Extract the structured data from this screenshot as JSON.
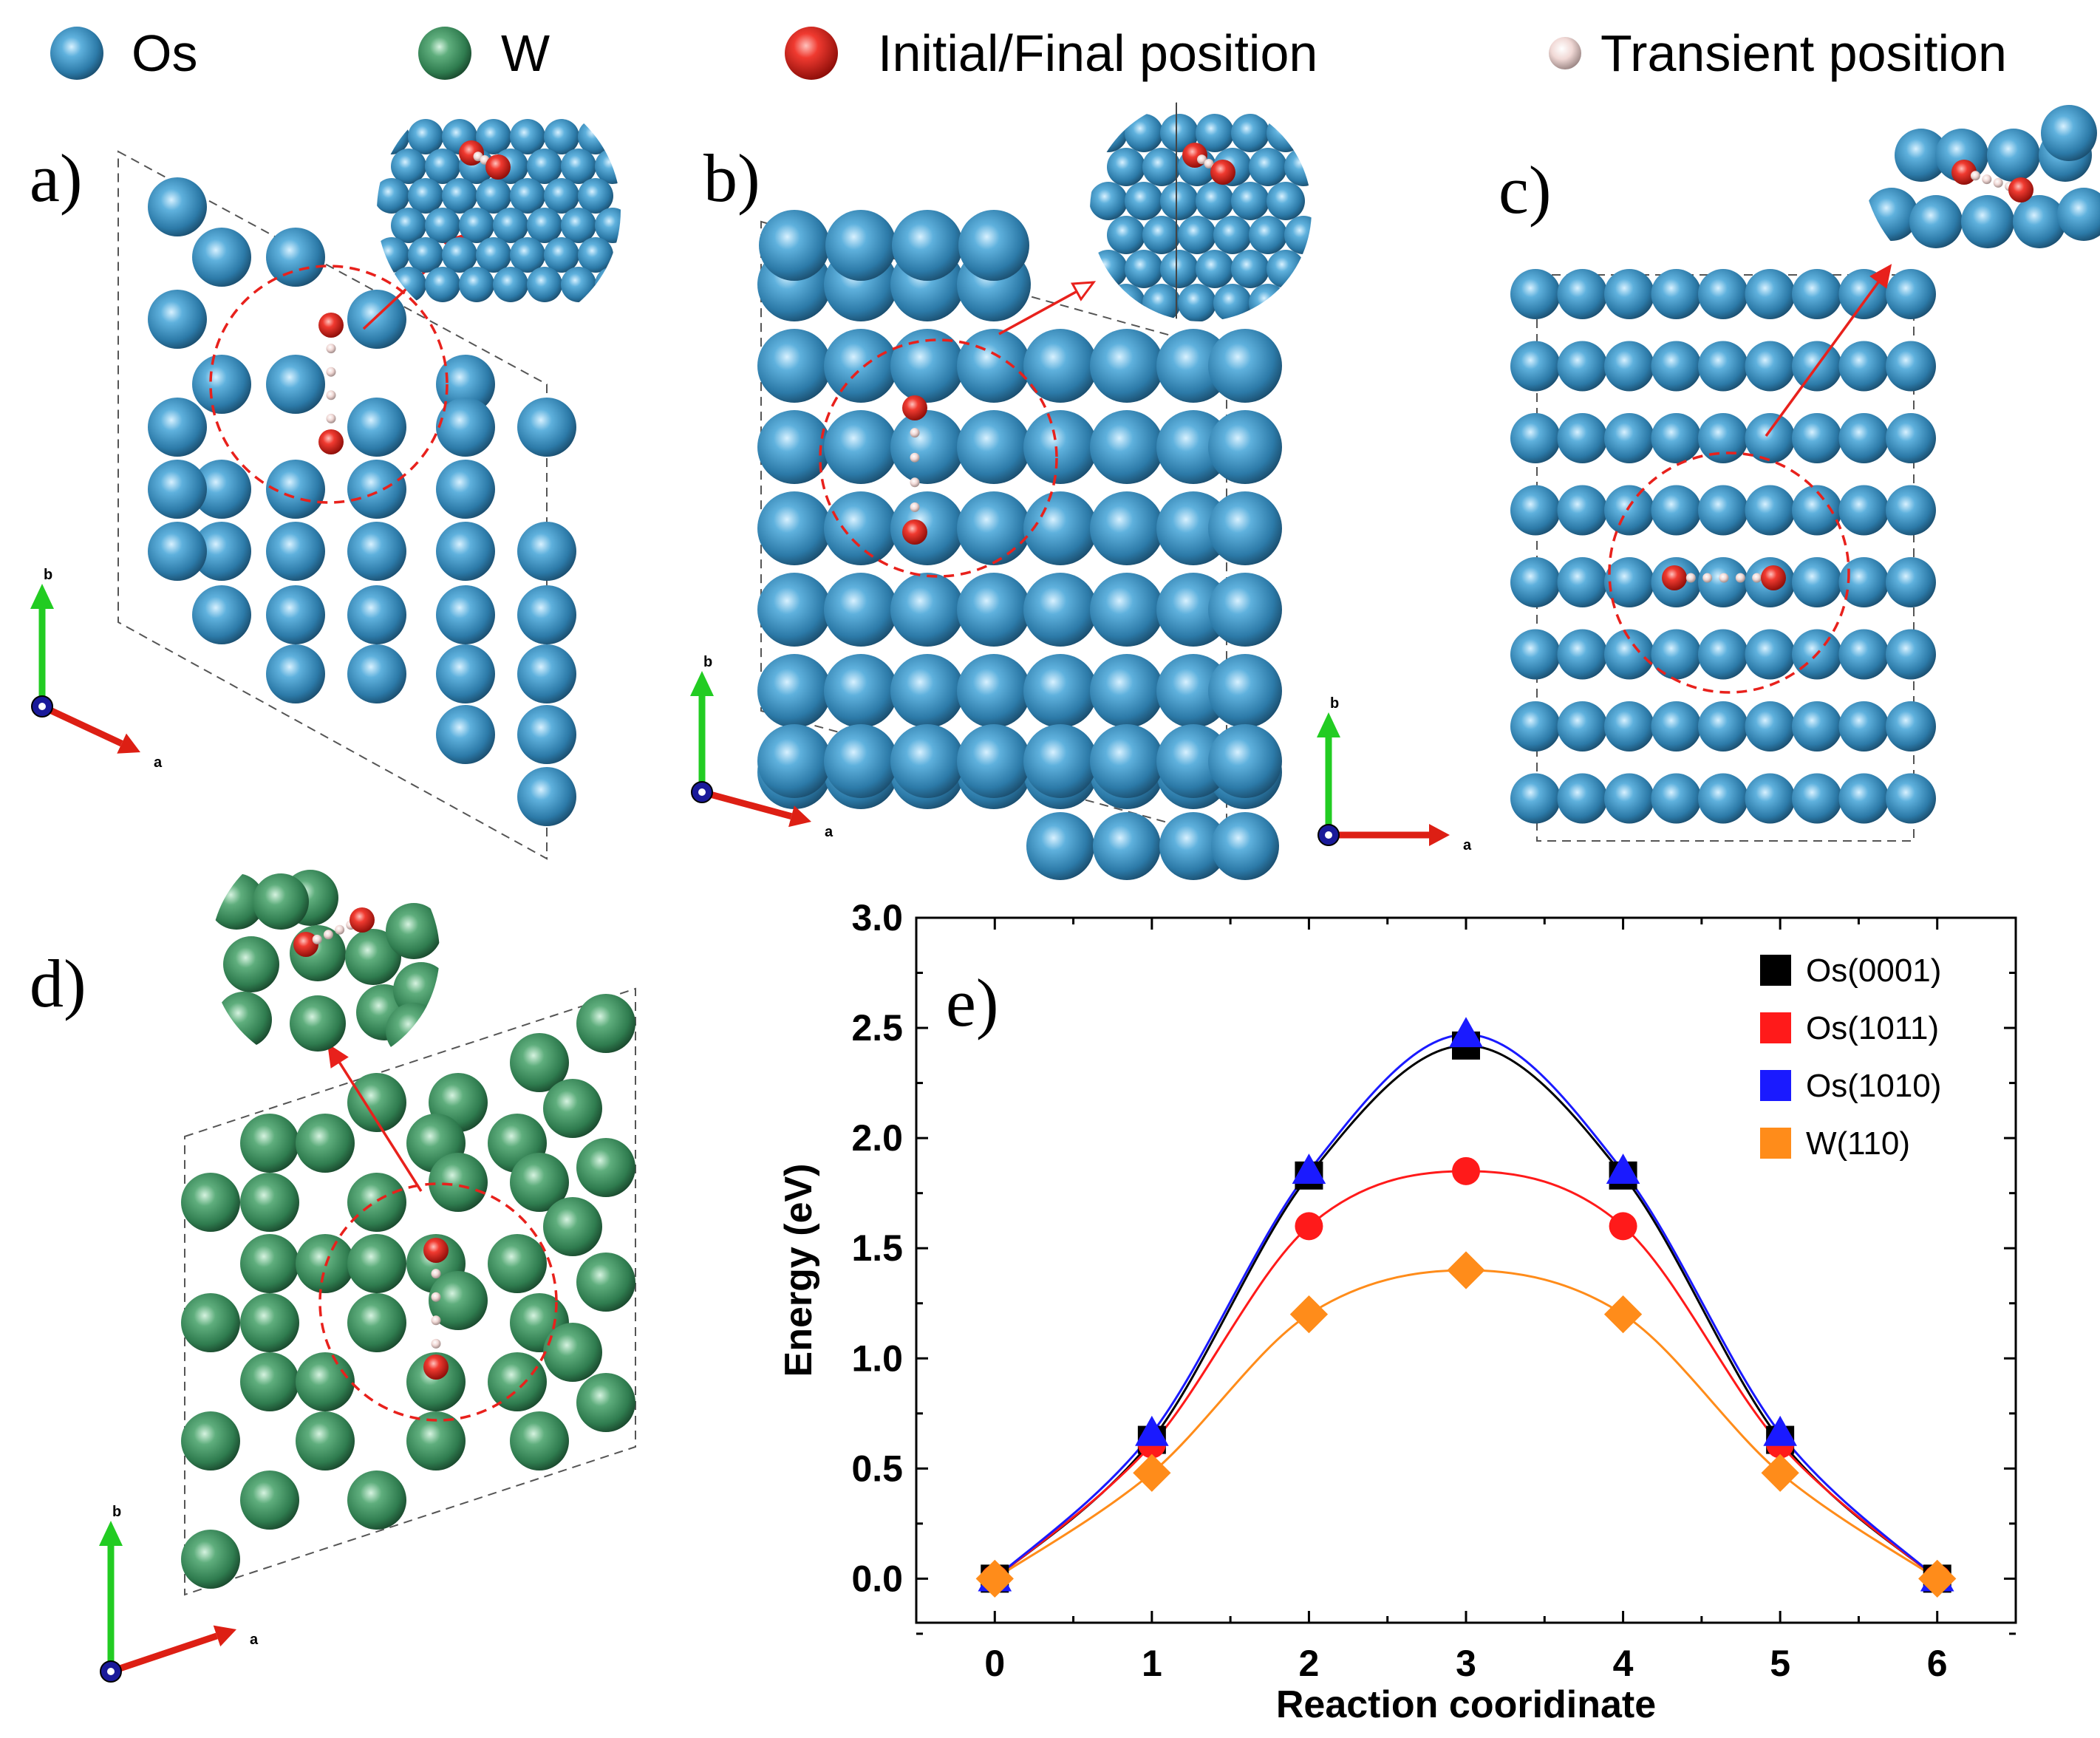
{
  "legend": {
    "items": [
      {
        "label": "Os",
        "kind": "os"
      },
      {
        "label": "W",
        "kind": "w"
      },
      {
        "label": "Initial/Final position",
        "kind": "red"
      },
      {
        "label": "Transient position",
        "kind": "transient"
      }
    ]
  },
  "panels": {
    "a": {
      "label": "a)"
    },
    "b": {
      "label": "b)"
    },
    "c": {
      "label": "c)"
    },
    "d": {
      "label": "d)"
    },
    "e": {
      "label": "e)"
    }
  },
  "axes_triad": {
    "a_label": "a",
    "b_label": "b"
  },
  "colors": {
    "os": "#3a8fbf",
    "w": "#3b8d5c",
    "red": "#e0231f",
    "transient": "#f1d9d6",
    "dashed": "#555555",
    "axis_green": "#22cc22",
    "axis_red": "#dd1f14",
    "axis_blue": "#1a1a9a"
  },
  "chart_data": {
    "type": "line",
    "title": "",
    "xlabel": "Reaction cooridinate",
    "ylabel": "Energy (eV)",
    "xlim": [
      -0.5,
      6.5
    ],
    "ylim": [
      -0.2,
      3.0
    ],
    "xticks": [
      0,
      1,
      2,
      3,
      4,
      5,
      6
    ],
    "yticks": [
      0.0,
      0.5,
      1.0,
      1.5,
      2.0,
      2.5,
      3.0
    ],
    "ytick_labels": [
      "0.0",
      "0.5",
      "1.0",
      "1.5",
      "2.0",
      "2.5",
      "3.0"
    ],
    "x": [
      0,
      1,
      2,
      3,
      4,
      5,
      6
    ],
    "legend_position": "top-right",
    "series": [
      {
        "name": "Os(0001)",
        "marker": "square",
        "color": "#000000",
        "values": [
          0.0,
          0.63,
          1.83,
          2.42,
          1.83,
          0.63,
          0.0
        ]
      },
      {
        "name": "Os(1011)",
        "marker": "circle",
        "color": "#ff1a1a",
        "values": [
          0.0,
          0.61,
          1.6,
          1.85,
          1.6,
          0.61,
          0.0
        ]
      },
      {
        "name": "Os(1010)",
        "marker": "triangle",
        "color": "#1a1aff",
        "values": [
          0.0,
          0.66,
          1.85,
          2.47,
          1.85,
          0.66,
          0.0
        ]
      },
      {
        "name": "W(110)",
        "marker": "diamond",
        "color": "#ff8c1a",
        "values": [
          0.0,
          0.48,
          1.2,
          1.4,
          1.2,
          0.48,
          0.0
        ]
      }
    ]
  }
}
